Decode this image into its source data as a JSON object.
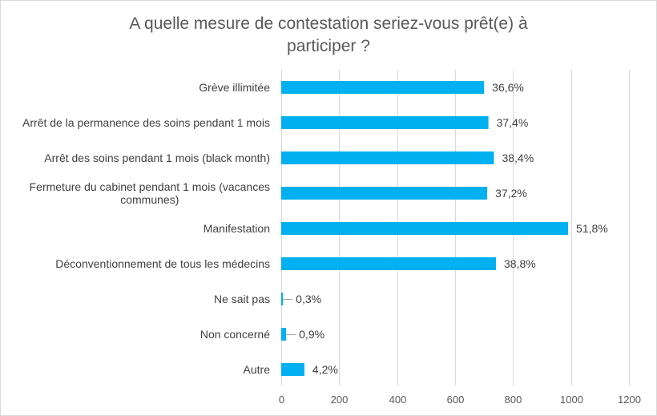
{
  "chart_data": {
    "type": "bar",
    "orientation": "horizontal",
    "title": "A quelle mesure de contestation seriez-vous prêt(e) à participer ?",
    "title_lines": [
      "A quelle mesure de contestation seriez-vous prêt(e) à",
      "participer ?"
    ],
    "categories": [
      "Grève illimitée",
      "Arrêt de la permanence des soins pendant 1 mois",
      "Arrêt des soins pendant 1 mois (black month)",
      "Fermeture du cabinet pendant 1 mois (vacances communes)",
      "Manifestation",
      "Déconventionnement de tous les médecins",
      "Ne sait pas",
      "Non concerné",
      "Autre"
    ],
    "category_lines": [
      [
        "Grève illimitée"
      ],
      [
        "Arrêt de la permanence des soins pendant 1 mois"
      ],
      [
        "Arrêt des soins pendant 1 mois (black month)"
      ],
      [
        "Fermeture du cabinet pendant 1 mois (vacances",
        "communes)"
      ],
      [
        "Manifestation"
      ],
      [
        "Déconventionnement de tous les médecins"
      ],
      [
        "Ne sait pas"
      ],
      [
        "Non concerné"
      ],
      [
        "Autre"
      ]
    ],
    "values": [
      700,
      715,
      734,
      711,
      990,
      741,
      6,
      17,
      80
    ],
    "data_labels": [
      "36,6%",
      "37,4%",
      "38,4%",
      "37,2%",
      "51,8%",
      "38,8%",
      "0,3%",
      "0,9%",
      "4,2%"
    ],
    "xlim": [
      0,
      1200
    ],
    "xticks": [
      0,
      200,
      400,
      600,
      800,
      1000,
      1200
    ],
    "xtick_labels": [
      "0",
      "200",
      "400",
      "600",
      "800",
      "1000",
      "1200"
    ],
    "xlabel": "",
    "ylabel": "",
    "grid": "vertical",
    "legend": "none",
    "bar_color": "#00b0f0"
  }
}
